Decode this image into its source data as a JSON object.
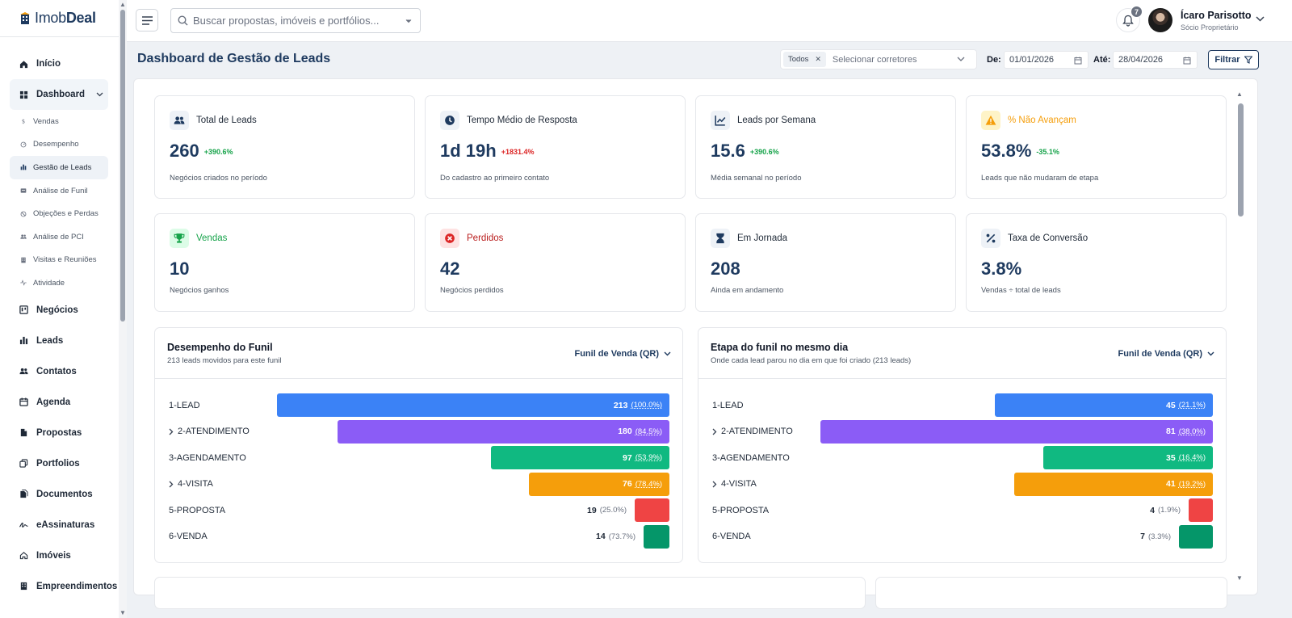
{
  "brand": {
    "name_light": "Imob",
    "name_bold": "Deal"
  },
  "sidebar": {
    "items": [
      {
        "label": "Início",
        "icon": "home-icon"
      },
      {
        "label": "Dashboard",
        "icon": "dashboard-icon",
        "expanded": true
      },
      {
        "label": "Vendas",
        "icon": "dollar-icon",
        "sub": true
      },
      {
        "label": "Desempenho",
        "icon": "gauge-icon",
        "sub": true
      },
      {
        "label": "Gestão de Leads",
        "icon": "bar-chart-icon",
        "sub": true,
        "active": true
      },
      {
        "label": "Análise de Funil",
        "icon": "funnel-icon",
        "sub": true
      },
      {
        "label": "Objeções e Perdas",
        "icon": "ban-icon",
        "sub": true
      },
      {
        "label": "Análise de PCI",
        "icon": "users-icon",
        "sub": true
      },
      {
        "label": "Visitas e Reuniões",
        "icon": "building-icon",
        "sub": true
      },
      {
        "label": "Atividade",
        "icon": "activity-icon",
        "sub": true
      },
      {
        "label": "Negócios",
        "icon": "kanban-icon"
      },
      {
        "label": "Leads",
        "icon": "bar-chart-icon"
      },
      {
        "label": "Contatos",
        "icon": "users-icon"
      },
      {
        "label": "Agenda",
        "icon": "calendar-icon"
      },
      {
        "label": "Propostas",
        "icon": "file-icon"
      },
      {
        "label": "Portfolios",
        "icon": "copy-icon"
      },
      {
        "label": "Documentos",
        "icon": "documents-icon"
      },
      {
        "label": "eAssinaturas",
        "icon": "signature-icon"
      },
      {
        "label": "Imóveis",
        "icon": "house-icon"
      },
      {
        "label": "Empreendimentos",
        "icon": "building-icon"
      }
    ]
  },
  "header": {
    "search_placeholder": "Buscar propostas, imóveis e portfólios...",
    "notifications_count": "7",
    "user_name": "Ícaro Parisotto",
    "user_role": "Sócio Proprietário"
  },
  "page": {
    "title": "Dashboard de Gestão de Leads",
    "broker_chip": "Todos",
    "broker_placeholder": "Selecionar corretores",
    "from_label": "De:",
    "from_date": "01/01/2026",
    "to_label": "Até:",
    "to_date": "28/04/2026",
    "filter_label": "Filtrar"
  },
  "kpis": [
    {
      "label": "Total de Leads",
      "value": "260",
      "delta": "+390.6%",
      "delta_color": "#16a34a",
      "sub": "Negócios criados no período",
      "icon": "users-icon",
      "label_color": "#1f2937",
      "icon_bg": "#eef2f7",
      "icon_color": "#1e3a5f"
    },
    {
      "label": "Tempo Médio de Resposta",
      "value": "1d 19h",
      "delta": "+1831.4%",
      "delta_color": "#dc2626",
      "sub": "Do cadastro ao primeiro contato",
      "icon": "clock-icon",
      "label_color": "#1f2937",
      "icon_bg": "#eef2f7",
      "icon_color": "#1e3a5f"
    },
    {
      "label": "Leads por Semana",
      "value": "15.6",
      "delta": "+390.6%",
      "delta_color": "#16a34a",
      "sub": "Média semanal no período",
      "icon": "trend-icon",
      "label_color": "#1f2937",
      "icon_bg": "#eef2f7",
      "icon_color": "#1e3a5f"
    },
    {
      "label": "% Não Avançam",
      "value": "53.8%",
      "delta": "-35.1%",
      "delta_color": "#16a34a",
      "sub": "Leads que não mudaram de etapa",
      "icon": "warning-icon",
      "label_color": "#f59e0b",
      "icon_bg": "#fef3c7",
      "icon_color": "#f59e0b"
    },
    {
      "label": "Vendas",
      "value": "10",
      "delta": "",
      "delta_color": "#16a34a",
      "sub": "Negócios ganhos",
      "icon": "trophy-icon",
      "label_color": "#16a34a",
      "icon_bg": "#dcfce7",
      "icon_color": "#16a34a"
    },
    {
      "label": "Perdidos",
      "value": "42",
      "delta": "",
      "delta_color": "#dc2626",
      "sub": "Negócios perdidos",
      "icon": "x-circle-icon",
      "label_color": "#b91c1c",
      "icon_bg": "#fee2e2",
      "icon_color": "#dc2626"
    },
    {
      "label": "Em Jornada",
      "value": "208",
      "delta": "",
      "delta_color": "#16a34a",
      "sub": "Ainda em andamento",
      "icon": "hourglass-icon",
      "label_color": "#1f2937",
      "icon_bg": "#eef2f7",
      "icon_color": "#1e3a5f"
    },
    {
      "label": "Taxa de Conversão",
      "value": "3.8%",
      "delta": "",
      "delta_color": "#16a34a",
      "sub": "Vendas ÷ total de leads",
      "icon": "percent-icon",
      "label_color": "#1f2937",
      "icon_bg": "#eef2f7",
      "icon_color": "#1e3a5f"
    }
  ],
  "funnels": [
    {
      "title": "Desempenho do Funil",
      "subtitle": "213 leads movidos para este funil",
      "selector": "Funil de Venda (QR)",
      "stages": [
        {
          "name": "1-LEAD",
          "count": "213",
          "pct": "(100.0%)",
          "fraction": 1.0,
          "color": "#3b82f6",
          "expandable": false
        },
        {
          "name": "2-ATENDIMENTO",
          "count": "180",
          "pct": "(84.5%)",
          "fraction": 0.845,
          "color": "#8b5cf6",
          "expandable": true
        },
        {
          "name": "3-AGENDAMENTO",
          "count": "97",
          "pct": "(53.9%)",
          "fraction": 0.455,
          "color": "#10b981",
          "expandable": false
        },
        {
          "name": "4-VISITA",
          "count": "76",
          "pct": "(78.4%)",
          "fraction": 0.357,
          "color": "#f59e0b",
          "expandable": true
        },
        {
          "name": "5-PROPOSTA",
          "count": "19",
          "pct": "(25.0%)",
          "fraction": 0.089,
          "color": "#ef4444",
          "expandable": false
        },
        {
          "name": "6-VENDA",
          "count": "14",
          "pct": "(73.7%)",
          "fraction": 0.066,
          "color": "#059669",
          "expandable": false
        }
      ]
    },
    {
      "title": "Etapa do funil no mesmo dia",
      "subtitle": "Onde cada lead parou no dia em que foi criado (213 leads)",
      "selector": "Funil de Venda (QR)",
      "stages": [
        {
          "name": "1-LEAD",
          "count": "45",
          "pct": "(21.1%)",
          "fraction": 0.556,
          "color": "#3b82f6",
          "expandable": false
        },
        {
          "name": "2-ATENDIMENTO",
          "count": "81",
          "pct": "(38.0%)",
          "fraction": 1.0,
          "color": "#8b5cf6",
          "expandable": true
        },
        {
          "name": "3-AGENDAMENTO",
          "count": "35",
          "pct": "(16.4%)",
          "fraction": 0.432,
          "color": "#10b981",
          "expandable": false
        },
        {
          "name": "4-VISITA",
          "count": "41",
          "pct": "(19.2%)",
          "fraction": 0.506,
          "color": "#f59e0b",
          "expandable": true
        },
        {
          "name": "5-PROPOSTA",
          "count": "4",
          "pct": "(1.9%)",
          "fraction": 0.049,
          "color": "#ef4444",
          "expandable": false
        },
        {
          "name": "6-VENDA",
          "count": "7",
          "pct": "(3.3%)",
          "fraction": 0.086,
          "color": "#059669",
          "expandable": false
        }
      ]
    }
  ]
}
